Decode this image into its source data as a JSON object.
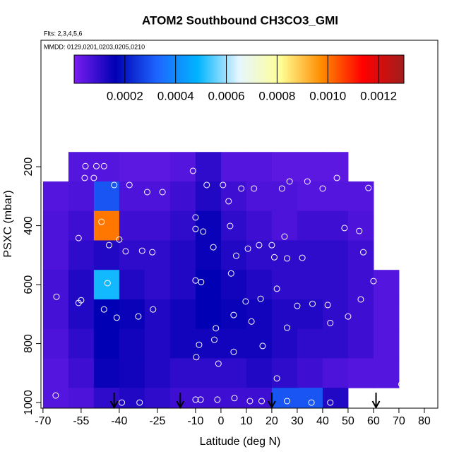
{
  "chart_data": {
    "type": "heatmap",
    "title": "ATOM2 Southbound CH3CO3_GMI",
    "subtitle": "Flts: 2,3,4,5,6",
    "annotation": "MMDD: 0129,0201,0203,0205,0210",
    "x_label": "Latitude (deg N)",
    "y_label": "PSXC (mbar)",
    "xlim": [
      -70.8,
      85.3
    ],
    "ylim": [
      1019,
      -229
    ],
    "xticks": [
      -70,
      -55,
      -40,
      -25,
      -10,
      0,
      10,
      20,
      30,
      40,
      50,
      60,
      70,
      80
    ],
    "yticks": [
      200,
      400,
      600,
      800,
      1000
    ],
    "x_bins": [
      -70,
      -60,
      -50,
      -40,
      -30,
      -20,
      -10,
      0,
      10,
      20,
      30,
      40,
      50,
      60,
      70
    ],
    "y_bins": [
      150,
      250,
      350,
      450,
      550,
      650,
      750,
      850,
      950,
      1050
    ],
    "z": [
      [
        null,
        5e-05,
        5e-05,
        4e-05,
        4e-05,
        5e-05,
        0.0001,
        5e-05,
        5e-05,
        4e-05,
        4e-05,
        4e-05,
        null,
        null
      ],
      [
        5e-05,
        6e-05,
        0.0003,
        6e-05,
        6e-05,
        8e-05,
        0.00012,
        8e-05,
        6e-05,
        6e-05,
        5e-05,
        5e-05,
        5e-05,
        null
      ],
      [
        6e-05,
        8e-05,
        0.001,
        8e-05,
        8e-05,
        0.0001,
        0.00015,
        0.0001,
        8e-05,
        6e-05,
        8e-05,
        8e-05,
        6e-05,
        null
      ],
      [
        6e-05,
        0.0001,
        0.00012,
        0.0001,
        0.0001,
        0.00012,
        0.00015,
        0.00012,
        0.0001,
        0.0001,
        0.0001,
        0.0001,
        8e-05,
        null
      ],
      [
        7e-05,
        0.00012,
        0.0005,
        0.00012,
        0.0001,
        0.00012,
        0.00016,
        0.00014,
        0.00012,
        0.0001,
        0.0001,
        0.0001,
        8e-05,
        5e-05
      ],
      [
        7e-05,
        0.00012,
        0.00016,
        0.00015,
        0.00012,
        0.00014,
        0.00016,
        0.00015,
        0.00014,
        0.00012,
        0.00012,
        0.0001,
        8e-05,
        5e-05
      ],
      [
        6e-05,
        0.0001,
        0.00016,
        0.00014,
        0.00012,
        0.00014,
        0.00014,
        0.00014,
        0.00014,
        0.00012,
        0.0001,
        0.0001,
        8e-05,
        5e-05
      ],
      [
        5e-05,
        8e-05,
        0.00015,
        0.00014,
        0.00012,
        0.0001,
        0.0001,
        0.0001,
        0.00012,
        0.0001,
        8e-05,
        6e-05,
        5e-05,
        5e-05
      ],
      [
        5e-05,
        6e-05,
        0.0001,
        0.00012,
        0.0001,
        8e-05,
        8e-05,
        8e-05,
        8e-05,
        0.0003,
        0.0003,
        0.00012,
        null,
        null
      ]
    ],
    "colorbar_lim": [
      0,
      0.0013
    ],
    "colorbar_ticks": [
      0.0002,
      0.0004,
      0.0006,
      0.0008,
      {
        "value": 0.001,
        "label": "0.0010"
      },
      0.0012
    ],
    "colormap": [
      "#7a1ef0",
      "#0000b4",
      "#1e64ff",
      "#00b4ff",
      "#e6f6ff",
      "#ffff96",
      "#ff8c00",
      "#ff0000",
      "#a01e1e"
    ],
    "points": {
      "x": [
        -53.3,
        -49,
        -46,
        -53.6,
        -50,
        -42,
        -36,
        -29,
        -23,
        -11,
        -5.6,
        0.8,
        3,
        8,
        13,
        24,
        27,
        34,
        40,
        45.6,
        58,
        -47,
        -44,
        -40,
        -37.5,
        -31,
        -27,
        -56,
        -10,
        -10,
        -7,
        -3,
        3.6,
        6,
        10.6,
        15,
        20,
        25,
        21,
        26,
        32,
        48.6,
        54.4,
        56,
        4,
        -10,
        -7.8,
        -44.6,
        22,
        9.7,
        15.6,
        30,
        36,
        42,
        55,
        60,
        -56,
        -55,
        -46,
        -41,
        -32.5,
        -26.7,
        -2,
        5,
        12,
        26,
        43,
        50,
        -64.7,
        -8.6,
        -2.6,
        5,
        16.4,
        -9.7,
        -1,
        22,
        71,
        -65,
        -39,
        -32,
        -10,
        -8,
        -1.4,
        5.3,
        11.4,
        16,
        26,
        35.6,
        43
      ],
      "y": [
        198,
        198,
        198,
        238,
        238,
        262,
        262,
        286,
        286,
        214,
        262,
        262,
        317,
        274,
        274,
        274,
        250,
        250,
        274,
        238,
        272,
        387,
        466,
        447,
        487,
        485,
        490,
        442,
        372,
        411,
        420,
        473,
        401,
        502,
        478,
        466,
        466,
        437,
        507,
        511,
        509,
        408,
        418,
        490,
        562,
        586,
        591,
        595,
        614,
        657,
        648,
        672,
        665,
        669,
        650,
        588,
        662,
        653,
        684,
        712,
        708,
        684,
        748,
        703,
        725,
        746,
        730,
        708,
        641,
        804,
        787,
        828,
        808,
        846,
        868,
        918,
        938,
        976,
        1000,
        1000,
        990,
        990,
        990,
        985,
        995,
        995,
        995,
        1000,
        1000
      ]
    },
    "point_color": "#ffffff",
    "markers_x": [
      -42,
      -16,
      20,
      61
    ]
  }
}
